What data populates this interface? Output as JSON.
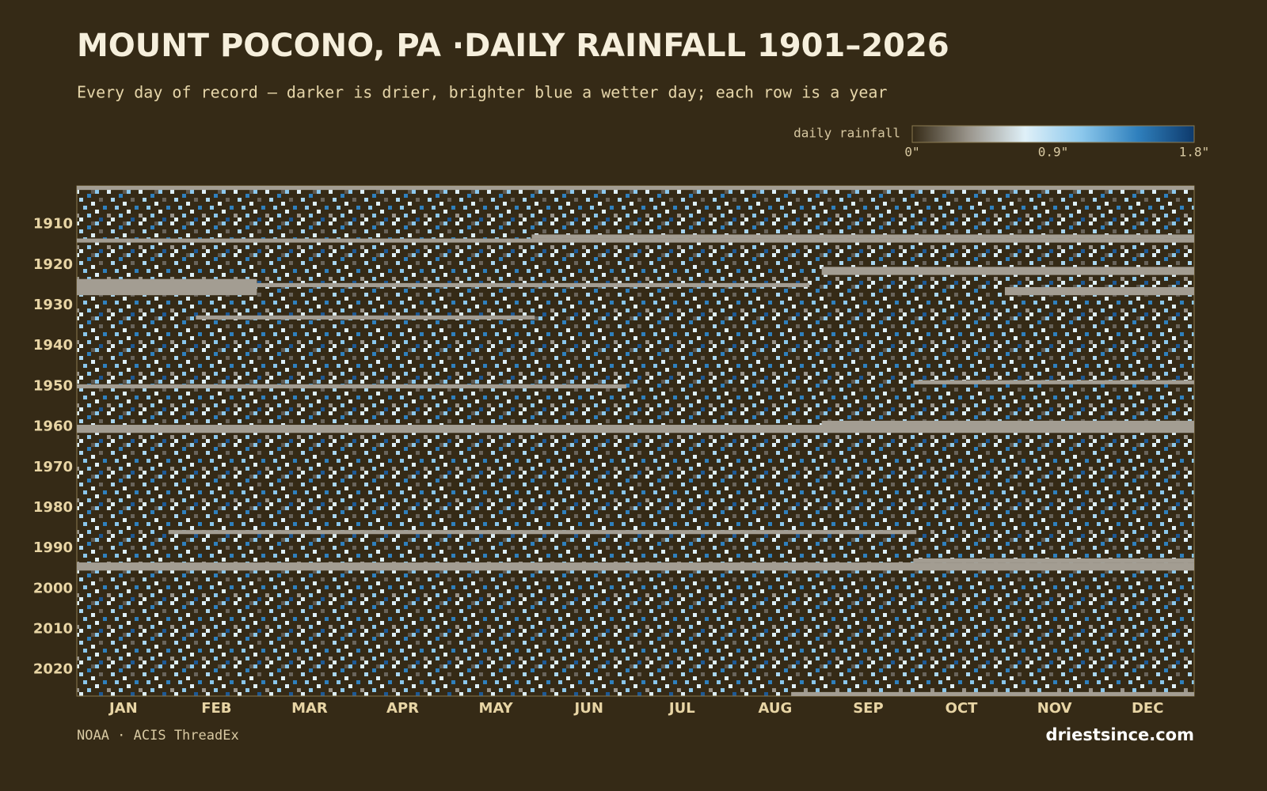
{
  "chart_data": {
    "type": "heatmap",
    "title": "MOUNT POCONO, PA ·DAILY RAINFALL 1901–2026",
    "subtitle": "Every day of record — darker is drier, brighter blue a wetter day; each row is a year",
    "categories": [
      "JAN",
      "FEB",
      "MAR",
      "APR",
      "MAY",
      "JUN",
      "JUL",
      "AUG",
      "SEP",
      "OCT",
      "NOV",
      "DEC"
    ],
    "xlim": [
      1,
      366
    ],
    "ylim": [
      1901,
      2026
    ],
    "yticks": [
      1910,
      1920,
      1930,
      1940,
      1950,
      1960,
      1970,
      1980,
      1990,
      2000,
      2010,
      2020
    ],
    "missing_color": "#a39d92",
    "missing": [
      {
        "years": [
          1901,
          1901
        ],
        "days": [
          1,
          366
        ]
      },
      {
        "years": [
          1913,
          1913
        ],
        "days": [
          150,
          366
        ]
      },
      {
        "years": [
          1914,
          1914
        ],
        "days": [
          1,
          366
        ]
      },
      {
        "years": [
          1921,
          1922
        ],
        "days": [
          245,
          366
        ]
      },
      {
        "years": [
          1924,
          1927
        ],
        "days": [
          1,
          59
        ]
      },
      {
        "years": [
          1925,
          1925
        ],
        "days": [
          60,
          240
        ]
      },
      {
        "years": [
          1926,
          1927
        ],
        "days": [
          305,
          366
        ]
      },
      {
        "years": [
          1933,
          1933
        ],
        "days": [
          40,
          150
        ]
      },
      {
        "years": [
          1949,
          1949
        ],
        "days": [
          275,
          366
        ]
      },
      {
        "years": [
          1950,
          1950
        ],
        "days": [
          1,
          180
        ]
      },
      {
        "years": [
          1959,
          1960
        ],
        "days": [
          245,
          366
        ]
      },
      {
        "years": [
          1960,
          1961
        ],
        "days": [
          1,
          366
        ]
      },
      {
        "years": [
          1986,
          1986
        ],
        "days": [
          31,
          275
        ]
      },
      {
        "years": [
          1993,
          1993
        ],
        "days": [
          275,
          366
        ]
      },
      {
        "years": [
          1994,
          1995
        ],
        "days": [
          1,
          366
        ]
      },
      {
        "years": [
          2026,
          2026
        ],
        "days": [
          235,
          366
        ]
      }
    ],
    "legend": {
      "label": "daily rainfall",
      "colors": [
        "#352a16",
        "#9a958c",
        "#dff0f8",
        "#8cc8ec",
        "#2f80bd",
        "#0e3a6c"
      ],
      "lim": [
        0,
        1.8
      ],
      "ticks": [
        {
          "value": 0,
          "label": "0\""
        },
        {
          "value": 0.9,
          "label": "0.9\""
        },
        {
          "value": 1.8,
          "label": "1.8\""
        }
      ]
    },
    "source": "NOAA · ACIS ThreadEx",
    "brand": "driestsince.com"
  }
}
